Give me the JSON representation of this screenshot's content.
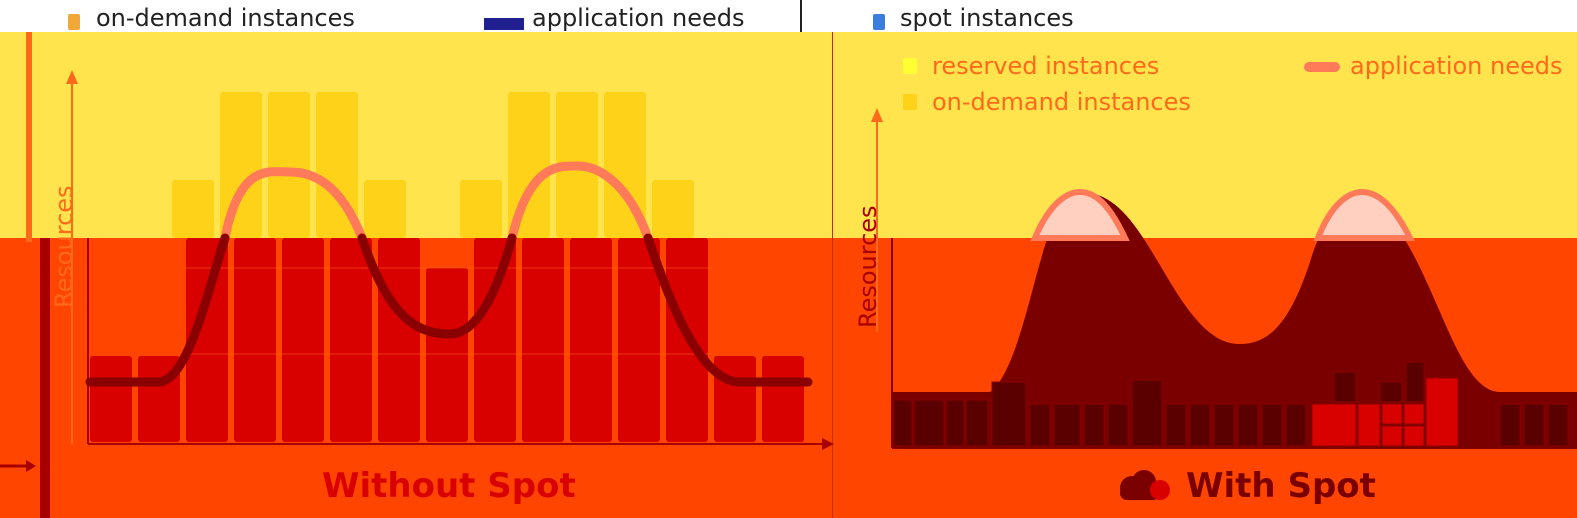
{
  "top_legend": {
    "on_demand_label": "on-demand instances",
    "app_needs_label": "application needs",
    "spot_label": "spot instances"
  },
  "right_legend": {
    "reserved_label": "reserved instances",
    "on_demand_label": "on-demand instances",
    "app_needs_label": "application needs"
  },
  "left_panel": {
    "y_axis_label": "Resources",
    "caption": "Without Spot"
  },
  "right_panel": {
    "y_axis_label": "Resources",
    "caption": "With Spot"
  },
  "colors": {
    "background_orange": "#ff4500",
    "yellow": "#ffe44d",
    "bar_red": "#d90000",
    "bar_yellow": "#ffd21a",
    "curve_salmon": "#ff7a59",
    "curve_dark": "#6b0000",
    "legend_navy": "#1f1f8f",
    "legend_blue": "#3b7ddd"
  }
}
